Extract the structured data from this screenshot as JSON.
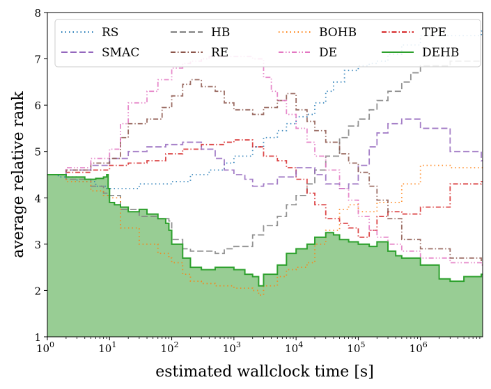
{
  "chart_data": {
    "type": "line",
    "title": "",
    "xlabel": "estimated wallclock time [s]",
    "ylabel": "average relative rank",
    "xscale": "log",
    "xlim": [
      1,
      10000000
    ],
    "ylim": [
      1,
      8
    ],
    "yticks": [
      "1",
      "2",
      "3",
      "4",
      "5",
      "6",
      "7",
      "8"
    ],
    "xticks": [
      {
        "base": "10",
        "exp": "0",
        "value": 1
      },
      {
        "base": "10",
        "exp": "1",
        "value": 10
      },
      {
        "base": "10",
        "exp": "2",
        "value": 100
      },
      {
        "base": "10",
        "exp": "3",
        "value": 1000
      },
      {
        "base": "10",
        "exp": "4",
        "value": 10000
      },
      {
        "base": "10",
        "exp": "5",
        "value": 100000
      },
      {
        "base": "10",
        "exp": "6",
        "value": 1000000
      }
    ],
    "legend_position": "top",
    "series": [
      {
        "name": "RS",
        "color": "#1f77b4",
        "dash": "dotted",
        "x": [
          1,
          1.5,
          3,
          6,
          9,
          15,
          30,
          60,
          100,
          200,
          400,
          700,
          1000,
          2000,
          3000,
          5000,
          7000,
          10000,
          15000,
          20000,
          30000,
          40000,
          60000,
          100000,
          150000,
          200000,
          300000,
          500000,
          1000000,
          3000000,
          9500000
        ],
        "y": [
          4.5,
          4.45,
          4.35,
          4.25,
          4.2,
          4.2,
          4.3,
          4.3,
          4.35,
          4.5,
          4.6,
          4.75,
          4.9,
          5.1,
          5.3,
          5.45,
          5.6,
          5.75,
          5.8,
          6.05,
          6.3,
          6.5,
          6.75,
          6.85,
          6.9,
          6.95,
          7.1,
          7.3,
          7.5,
          7.5,
          7.6
        ]
      },
      {
        "name": "HB",
        "color": "#7f7f7f",
        "dash": "dashed",
        "x": [
          1,
          2,
          5,
          8,
          9.5,
          15,
          30,
          60,
          90,
          100,
          150,
          200,
          300,
          500,
          700,
          1000,
          2000,
          3000,
          5000,
          7000,
          10000,
          15000,
          20000,
          30000,
          50000,
          70000,
          100000,
          150000,
          200000,
          300000,
          500000,
          700000,
          1000000,
          3000000,
          9500000
        ],
        "y": [
          4.5,
          4.4,
          4.25,
          4.1,
          4.05,
          3.75,
          3.6,
          3.55,
          3.5,
          3.1,
          2.9,
          2.85,
          2.85,
          2.8,
          2.9,
          2.95,
          3.2,
          3.4,
          3.6,
          3.85,
          4.05,
          4.3,
          4.6,
          4.9,
          5.3,
          5.55,
          5.7,
          5.9,
          6.1,
          6.3,
          6.5,
          6.7,
          6.85,
          6.95,
          6.95
        ]
      },
      {
        "name": "BOHB",
        "color": "#ff7f0e",
        "dash": "dotted",
        "x": [
          1,
          2,
          5,
          8,
          9.5,
          15,
          30,
          60,
          90,
          100,
          150,
          200,
          300,
          500,
          1000,
          2000,
          2500,
          3000,
          5000,
          7000,
          10000,
          15000,
          20000,
          30000,
          50000,
          70000,
          100000,
          200000,
          500000,
          1000000,
          3000000,
          9500000
        ],
        "y": [
          4.5,
          4.35,
          4.15,
          4.05,
          4.0,
          3.35,
          3.0,
          2.8,
          2.7,
          2.6,
          2.35,
          2.2,
          2.15,
          2.1,
          2.05,
          2.0,
          1.9,
          2.1,
          2.3,
          2.45,
          2.5,
          2.6,
          3.0,
          3.3,
          3.75,
          3.85,
          3.7,
          3.9,
          4.3,
          4.7,
          4.65,
          4.65
        ]
      },
      {
        "name": "TPE",
        "color": "#d62728",
        "dash": "dashdot",
        "x": [
          1,
          2,
          5,
          10,
          20,
          40,
          80,
          150,
          300,
          700,
          1000,
          2000,
          3000,
          5000,
          7000,
          10000,
          15000,
          20000,
          30000,
          50000,
          70000,
          100000,
          150000,
          200000,
          300000,
          500000,
          1000000,
          3000000,
          9500000
        ],
        "y": [
          4.5,
          4.55,
          4.6,
          4.7,
          4.75,
          4.8,
          4.95,
          5.05,
          5.15,
          5.2,
          5.25,
          5.1,
          4.9,
          4.8,
          4.65,
          4.4,
          4.1,
          3.85,
          3.55,
          3.45,
          3.35,
          3.15,
          3.3,
          3.6,
          3.7,
          3.65,
          3.8,
          4.3,
          4.35
        ]
      },
      {
        "name": "SMAC",
        "color": "#9467bd",
        "dash": "dashed",
        "x": [
          1,
          2,
          5,
          10,
          20,
          40,
          80,
          150,
          300,
          500,
          700,
          1000,
          1500,
          2000,
          3000,
          5000,
          10000,
          20000,
          30000,
          50000,
          70000,
          100000,
          150000,
          200000,
          300000,
          500000,
          1000000,
          3000000,
          9500000
        ],
        "y": [
          4.5,
          4.6,
          4.7,
          4.85,
          5.0,
          5.1,
          5.15,
          5.2,
          5.05,
          4.85,
          4.6,
          4.5,
          4.4,
          4.25,
          4.3,
          4.45,
          4.65,
          4.5,
          4.3,
          4.2,
          4.3,
          4.7,
          5.1,
          5.4,
          5.6,
          5.7,
          5.5,
          5.0,
          4.8
        ]
      },
      {
        "name": "RE",
        "color": "#8c564b",
        "dash": "dashdot",
        "x": [
          1,
          2,
          5,
          10,
          15,
          20,
          40,
          70,
          100,
          150,
          200,
          300,
          500,
          700,
          1000,
          2000,
          3000,
          5000,
          7000,
          10000,
          15000,
          20000,
          30000,
          50000,
          70000,
          100000,
          150000,
          200000,
          300000,
          500000,
          1000000,
          3000000,
          9500000
        ],
        "y": [
          4.5,
          4.6,
          4.75,
          4.85,
          5.3,
          5.6,
          5.7,
          5.95,
          6.2,
          6.45,
          6.55,
          6.4,
          6.3,
          6.05,
          5.9,
          5.8,
          5.95,
          6.1,
          6.25,
          5.9,
          5.65,
          5.45,
          5.2,
          4.95,
          4.75,
          4.55,
          4.25,
          3.95,
          3.55,
          3.1,
          2.9,
          2.7,
          2.65
        ]
      },
      {
        "name": "DE",
        "color": "#e377c2",
        "dash": "dashdotdot",
        "x": [
          1,
          2,
          5,
          10,
          15,
          20,
          40,
          60,
          100,
          150,
          200,
          300,
          400,
          700,
          1000,
          1500,
          2000,
          3000,
          4000,
          5000,
          7000,
          10000,
          15000,
          20000,
          30000,
          50000,
          70000,
          100000,
          150000,
          200000,
          300000,
          500000,
          1000000,
          3000000,
          9500000
        ],
        "y": [
          4.5,
          4.65,
          4.85,
          5.05,
          5.6,
          6.05,
          6.3,
          6.55,
          6.8,
          6.9,
          6.95,
          7.0,
          7.05,
          7.05,
          7.05,
          7.05,
          7.0,
          6.6,
          6.3,
          6.1,
          5.8,
          5.5,
          5.2,
          4.9,
          4.6,
          4.2,
          3.95,
          3.6,
          3.3,
          3.15,
          3.0,
          2.85,
          2.7,
          2.6,
          2.55
        ]
      },
      {
        "name": "DEHB",
        "color": "#2ca02c",
        "dash": "solid",
        "x": [
          1,
          2,
          4,
          6,
          8,
          9,
          9.5,
          10,
          12,
          15,
          20,
          30,
          40,
          60,
          80,
          90,
          100,
          150,
          200,
          300,
          500,
          700,
          1000,
          1500,
          2000,
          2500,
          3000,
          5000,
          7000,
          10000,
          15000,
          20000,
          30000,
          40000,
          50000,
          70000,
          100000,
          150000,
          200000,
          300000,
          400000,
          500000,
          700000,
          1000000,
          2000000,
          3000000,
          5000000,
          9500000
        ],
        "y": [
          4.5,
          4.45,
          4.4,
          4.42,
          4.45,
          4.5,
          4.2,
          3.9,
          3.85,
          3.8,
          3.7,
          3.75,
          3.65,
          3.55,
          3.45,
          3.3,
          3.0,
          2.7,
          2.5,
          2.45,
          2.5,
          2.5,
          2.45,
          2.35,
          2.3,
          2.1,
          2.35,
          2.55,
          2.8,
          2.9,
          3.0,
          3.15,
          3.25,
          3.2,
          3.1,
          3.05,
          3.0,
          2.95,
          3.05,
          2.85,
          2.75,
          2.7,
          2.7,
          2.55,
          2.25,
          2.2,
          2.3,
          2.35
        ]
      }
    ]
  }
}
